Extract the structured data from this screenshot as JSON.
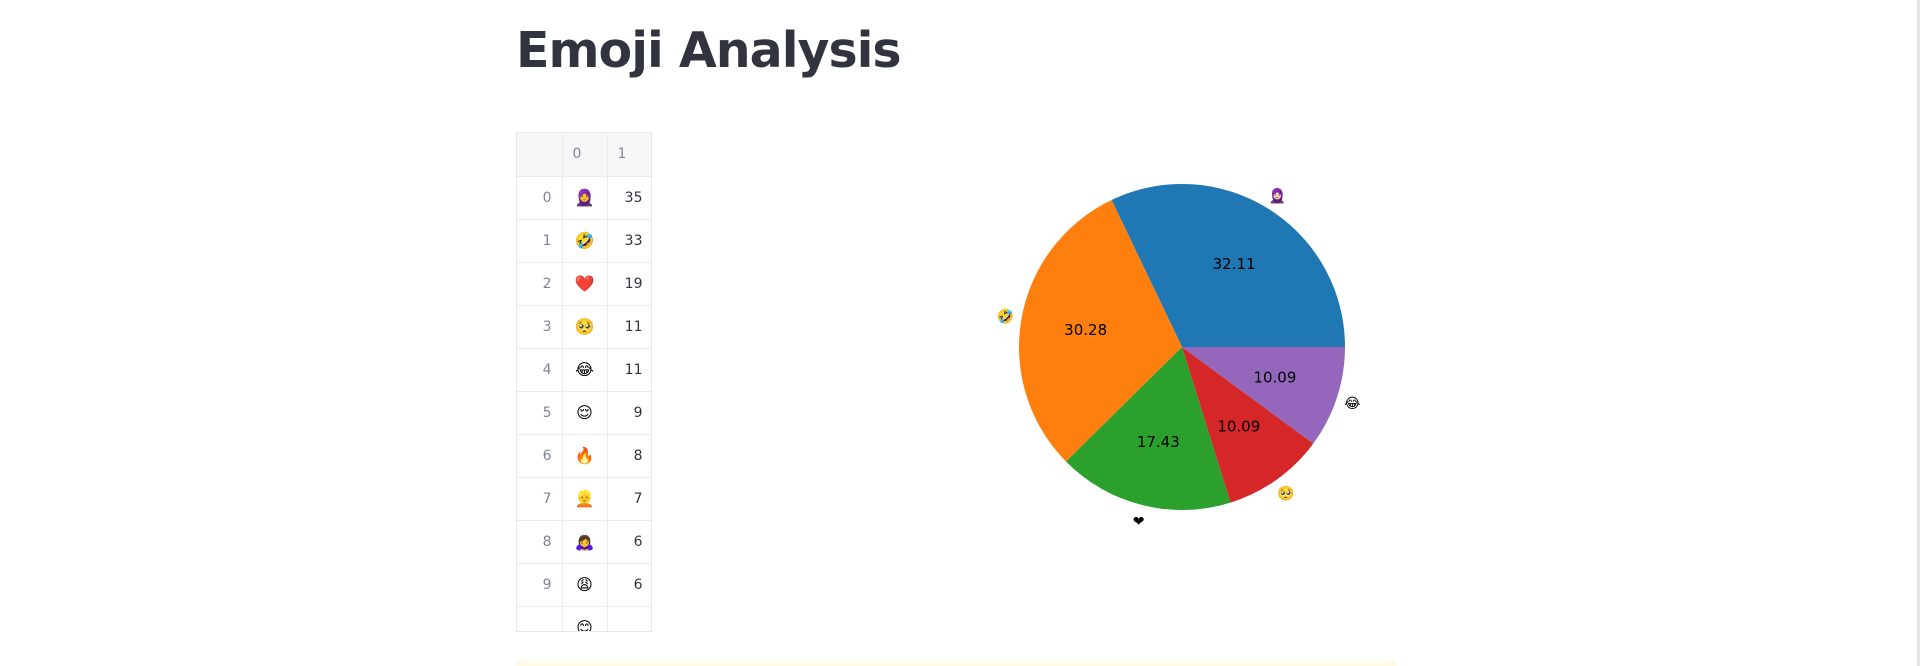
{
  "page": {
    "title": "Emoji Analysis"
  },
  "table": {
    "columns": [
      "",
      "0",
      "1"
    ],
    "rows": [
      {
        "index": "0",
        "emoji": "🧕",
        "count": "35"
      },
      {
        "index": "1",
        "emoji": "🤣",
        "count": "33"
      },
      {
        "index": "2",
        "emoji": "❤️",
        "count": "19"
      },
      {
        "index": "3",
        "emoji": "🥺",
        "count": "11"
      },
      {
        "index": "4",
        "emoji": "😂",
        "count": "11"
      },
      {
        "index": "5",
        "emoji": "😌",
        "count": "9"
      },
      {
        "index": "6",
        "emoji": "🔥",
        "count": "8"
      },
      {
        "index": "7",
        "emoji": "👱",
        "count": "7"
      },
      {
        "index": "8",
        "emoji": "🙇‍♀️",
        "count": "6"
      },
      {
        "index": "9",
        "emoji": "😩",
        "count": "6"
      },
      {
        "index": "",
        "emoji": "😊",
        "count": ""
      }
    ]
  },
  "chart_data": {
    "type": "pie",
    "labels": [
      "🧕🏻",
      "🤣",
      "❤",
      "🥺",
      "😂"
    ],
    "values": [
      32.11,
      30.28,
      17.43,
      10.09,
      10.09
    ],
    "value_labels": [
      "32.11",
      "30.28",
      "17.43",
      "10.09",
      "10.09"
    ],
    "colors": [
      "#1f77b4",
      "#ff7f0e",
      "#2ca02c",
      "#d62728",
      "#9467bd"
    ],
    "start_angle": 0,
    "direction": "counterclockwise"
  }
}
